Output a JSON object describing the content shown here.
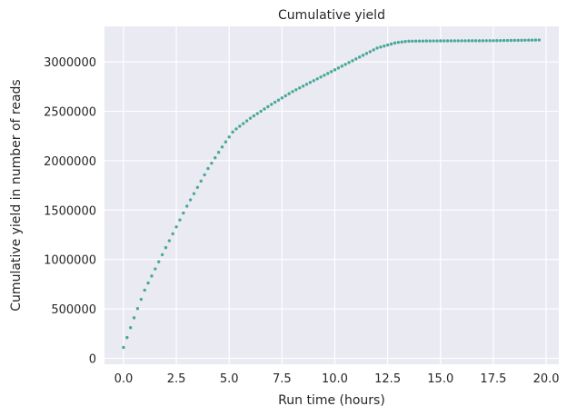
{
  "chart_data": {
    "type": "scatter",
    "title": "Cumulative yield",
    "xlabel": "Run time (hours)",
    "ylabel": "Cumulative yield in number of reads",
    "xlim": [
      -0.9,
      20.6
    ],
    "ylim": [
      -60000,
      3360000
    ],
    "x_ticks": [
      0,
      2.5,
      5,
      7.5,
      10,
      12.5,
      15,
      17.5,
      20
    ],
    "x_tick_labels": [
      "0.0",
      "2.5",
      "5.0",
      "7.5",
      "10.0",
      "12.5",
      "15.0",
      "17.5",
      "20.0"
    ],
    "y_ticks": [
      0,
      500000,
      1000000,
      1500000,
      2000000,
      2500000,
      3000000
    ],
    "y_tick_labels": [
      "0",
      "500000",
      "1000000",
      "1500000",
      "2000000",
      "2500000",
      "3000000"
    ],
    "grid": true,
    "marker_color": "#4aa99a",
    "background_color": "#eaeaf2",
    "curve_points": [
      [
        0,
        110000
      ],
      [
        0.5,
        410000
      ],
      [
        1,
        690000
      ],
      [
        2,
        1120000
      ],
      [
        3,
        1540000
      ],
      [
        4,
        1920000
      ],
      [
        4.7,
        2150000
      ],
      [
        5.2,
        2300000
      ],
      [
        6,
        2430000
      ],
      [
        7,
        2570000
      ],
      [
        8,
        2700000
      ],
      [
        9,
        2810000
      ],
      [
        10,
        2920000
      ],
      [
        11,
        3030000
      ],
      [
        12,
        3140000
      ],
      [
        12.9,
        3195000
      ],
      [
        13.5,
        3210000
      ],
      [
        15,
        3213000
      ],
      [
        17.5,
        3215000
      ],
      [
        18.5,
        3218000
      ],
      [
        19.75,
        3222000
      ]
    ],
    "x_start": 0,
    "x_end": 19.75,
    "x_step": 0.1667
  }
}
